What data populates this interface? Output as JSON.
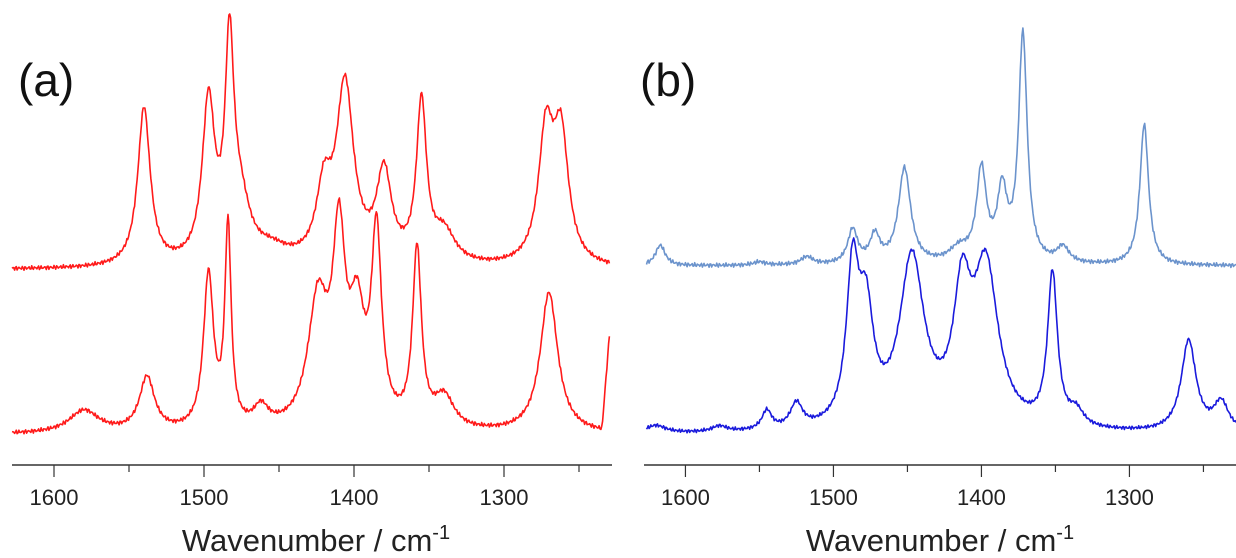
{
  "chart_data": [
    {
      "type": "line",
      "panel_label": "(a)",
      "xlabel": "Wavenumber / cm",
      "xlabel_superscript": "-1",
      "xlim": [
        1628,
        1228
      ],
      "x_reversed": true,
      "x_ticks": [
        1600,
        1500,
        1400,
        1300
      ],
      "x_minor_ticks": [
        1550,
        1450,
        1350,
        1250
      ],
      "y_axis_shown": false,
      "grid": false,
      "legend": "none",
      "color": "#ff1a1a",
      "series": [
        {
          "peaks": [
            [
              1540,
              0.72,
              5
            ],
            [
              1497,
              0.72,
              5
            ],
            [
              1483,
              0.92,
              3.5
            ],
            [
              1476,
              0.25,
              8
            ],
            [
              1420,
              0.3,
              6
            ],
            [
              1406,
              0.8,
              7
            ],
            [
              1380,
              0.4,
              6
            ],
            [
              1355,
              0.72,
              4
            ],
            [
              1340,
              0.14,
              9
            ],
            [
              1272,
              0.58,
              6
            ],
            [
              1262,
              0.56,
              6
            ],
            [
              1455,
              0.06,
              14
            ]
          ],
          "baseline": 0.01
        },
        {
          "peaks": [
            [
              1538,
              0.24,
              6
            ],
            [
              1497,
              0.68,
              4
            ],
            [
              1484,
              0.88,
              2.5
            ],
            [
              1462,
              0.09,
              6
            ],
            [
              1424,
              0.55,
              8
            ],
            [
              1410,
              0.78,
              5
            ],
            [
              1398,
              0.45,
              6
            ],
            [
              1385,
              0.83,
              4
            ],
            [
              1358,
              0.78,
              3.5
            ],
            [
              1340,
              0.14,
              8
            ],
            [
              1270,
              0.62,
              7
            ],
            [
              1580,
              0.1,
              12
            ]
          ],
          "baseline": 0.05,
          "endpoint_rise": 0.45
        }
      ]
    },
    {
      "type": "line",
      "panel_label": "(b)",
      "xlabel": "Wavenumber / cm",
      "xlabel_superscript": "-1",
      "xlim": [
        1628,
        1228
      ],
      "x_reversed": true,
      "x_ticks": [
        1600,
        1500,
        1400,
        1300
      ],
      "x_minor_ticks": [
        1550,
        1450,
        1350,
        1250
      ],
      "y_axis_shown": false,
      "grid": false,
      "legend": "none",
      "series": [
        {
          "color": "#6b93cc",
          "peaks": [
            [
              1617,
              0.09,
              4
            ],
            [
              1550,
              0.015,
              5
            ],
            [
              1518,
              0.035,
              5
            ],
            [
              1487,
              0.15,
              4
            ],
            [
              1472,
              0.12,
              4
            ],
            [
              1452,
              0.42,
              5
            ],
            [
              1415,
              0.06,
              8
            ],
            [
              1400,
              0.4,
              4
            ],
            [
              1386,
              0.3,
              4
            ],
            [
              1372,
              1.0,
              3.5
            ],
            [
              1345,
              0.07,
              5
            ],
            [
              1290,
              0.62,
              3.5
            ]
          ],
          "baseline": 0.0
        },
        {
          "color": "#1a1adc",
          "peaks": [
            [
              1620,
              0.04,
              8
            ],
            [
              1577,
              0.03,
              6
            ],
            [
              1545,
              0.1,
              4
            ],
            [
              1525,
              0.13,
              5
            ],
            [
              1487,
              0.78,
              5
            ],
            [
              1478,
              0.55,
              6
            ],
            [
              1447,
              0.88,
              10
            ],
            [
              1413,
              0.63,
              7
            ],
            [
              1397,
              0.82,
              10
            ],
            [
              1352,
              0.8,
              4
            ],
            [
              1336,
              0.08,
              6
            ],
            [
              1260,
              0.48,
              6
            ],
            [
              1238,
              0.15,
              6
            ]
          ],
          "baseline": 0.05
        }
      ]
    }
  ]
}
